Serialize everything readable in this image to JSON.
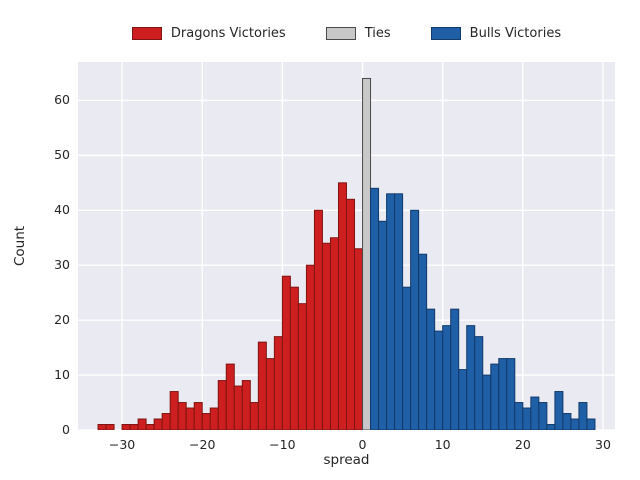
{
  "chart_data": {
    "type": "bar",
    "subtype": "histogram",
    "title": "",
    "xlabel": "spread",
    "ylabel": "Count",
    "xlim": [
      -35.5,
      31.5
    ],
    "ylim": [
      0,
      67
    ],
    "xticks": [
      -30,
      -20,
      -10,
      0,
      10,
      20,
      30
    ],
    "yticks": [
      0,
      10,
      20,
      30,
      40,
      50,
      60
    ],
    "bin_width": 1,
    "grid": "on",
    "plot_background": "#eaeaf2",
    "gridline_color": "#ffffff",
    "legend_position": "top",
    "series": [
      {
        "name": "Dragons Victories",
        "color": "#cd1f1f",
        "edge": "#7f1512",
        "bin_start": -33,
        "counts": [
          1,
          1,
          0,
          1,
          1,
          2,
          1,
          2,
          3,
          7,
          5,
          4,
          5,
          3,
          4,
          9,
          12,
          8,
          9,
          5,
          16,
          13,
          17,
          28,
          26,
          23,
          30,
          40,
          34,
          35,
          45,
          42,
          33
        ]
      },
      {
        "name": "Ties",
        "color": "#c8c8c8",
        "edge": "#4a4a4a",
        "bin_start": 0,
        "counts": [
          64
        ]
      },
      {
        "name": "Bulls Victories",
        "color": "#1f5fa6",
        "edge": "#123a6b",
        "bin_start": 1,
        "counts": [
          44,
          38,
          43,
          43,
          26,
          40,
          32,
          22,
          18,
          19,
          22,
          11,
          19,
          17,
          10,
          12,
          13,
          13,
          5,
          4,
          6,
          5,
          1,
          7,
          3,
          2,
          5,
          2
        ]
      }
    ]
  }
}
